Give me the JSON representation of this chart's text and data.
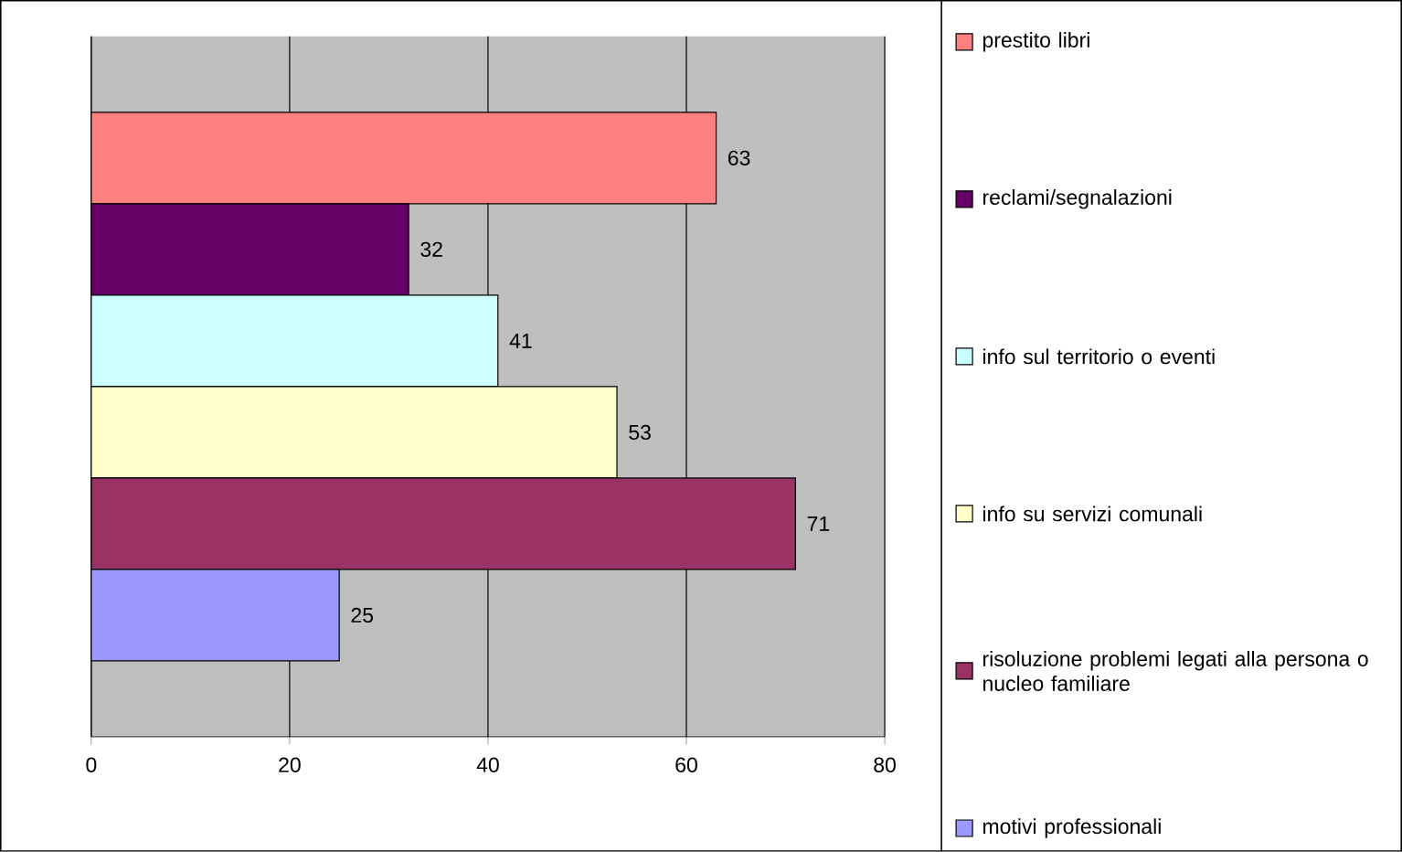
{
  "chart_data": {
    "type": "bar",
    "orientation": "horizontal",
    "categories": [
      null
    ],
    "series": [
      {
        "name": "prestito libri",
        "color": "#ff8080",
        "values": [
          63
        ]
      },
      {
        "name": "reclami/segnalazioni",
        "color": "#660066",
        "values": [
          32
        ]
      },
      {
        "name": "info sul territorio o eventi",
        "color": "#ccffff",
        "values": [
          41
        ]
      },
      {
        "name": "info su servizi comunali",
        "color": "#ffffcc",
        "values": [
          53
        ]
      },
      {
        "name": "risoluzione problemi legati alla persona o nucleo familiare",
        "color": "#993366",
        "values": [
          71
        ]
      },
      {
        "name": "motivi professionali",
        "color": "#9999ff",
        "values": [
          25
        ]
      }
    ],
    "xlim": [
      0,
      80
    ],
    "xticks": [
      0,
      20,
      40,
      60,
      80
    ],
    "grid": "x",
    "legend": "right",
    "data_labels": true
  }
}
